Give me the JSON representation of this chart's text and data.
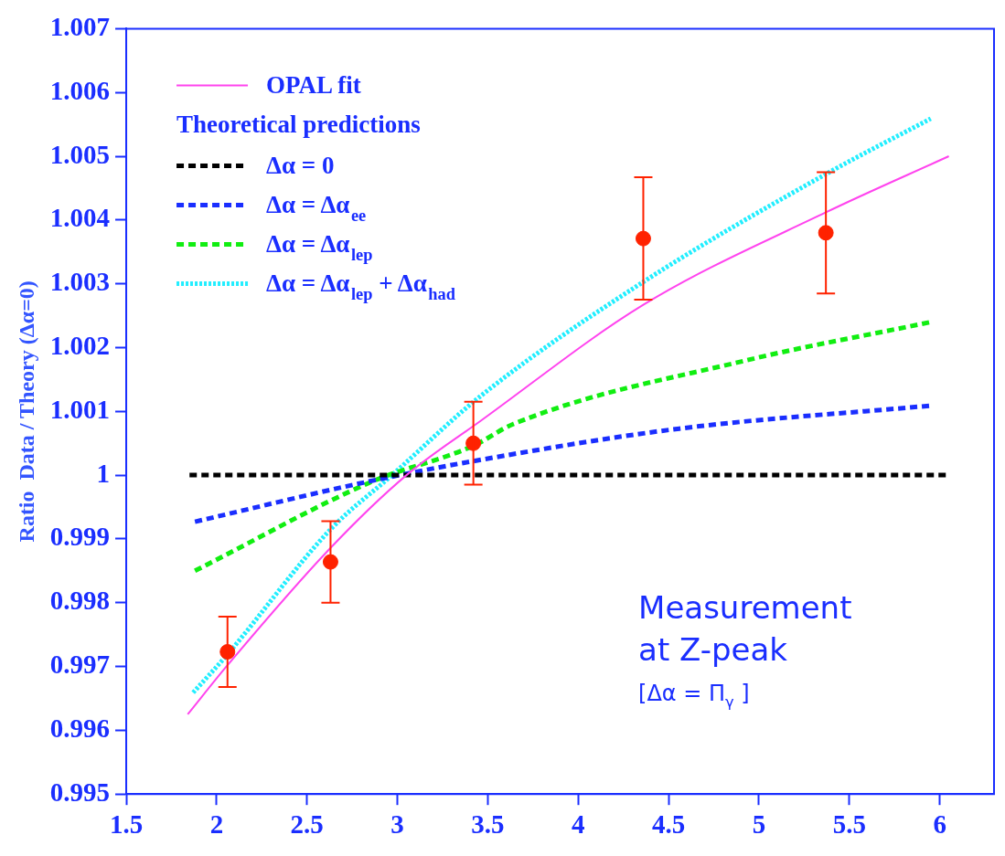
{
  "chart_data": {
    "type": "line",
    "ylabel": "Ratio  Data / Theory (Δα=0)",
    "legend_title": "Theoretical predictions",
    "legend": "top left",
    "grid": false,
    "xlim": [
      1.5,
      6.3
    ],
    "xticks": [
      1.5,
      2,
      2.5,
      3,
      3.5,
      4,
      4.5,
      5,
      5.5,
      6
    ],
    "ylim": [
      0.995,
      1.007
    ],
    "yticks": [
      0.995,
      0.996,
      0.997,
      0.998,
      0.999,
      1,
      1.001,
      1.002,
      1.003,
      1.004,
      1.005,
      1.006,
      1.007
    ],
    "annotations": [
      "Measurement",
      "at Z-peak",
      "[Δα = Π$_{γ}$ ]"
    ],
    "series": [
      {
        "name": "OPAL fit",
        "color": "#ff44ee",
        "line_style": "solid",
        "x": [
          1.84,
          2.06,
          2.63,
          3.05,
          3.46,
          4.36,
          5.37,
          6.05
        ],
        "values": [
          0.99625,
          0.99702,
          0.99886,
          1.0,
          1.00085,
          1.00267,
          1.00412,
          1.005
        ]
      },
      {
        "name": "Δα = 0",
        "color": "#000000",
        "line_style": "dashed",
        "x": [
          1.85,
          6.05
        ],
        "values": [
          1,
          1
        ]
      },
      {
        "name": "Δα = Δα$_{ee}$",
        "color": "#1a2eff",
        "line_style": "dashed",
        "x": [
          1.88,
          2.84,
          3.42,
          4.56,
          5.95
        ],
        "values": [
          0.99927,
          0.9999,
          1.00022,
          1.00073,
          1.00109
        ]
      },
      {
        "name": "Δα = Δα$_{lep}$",
        "color": "#11ee11",
        "line_style": "dashed",
        "x": [
          1.88,
          2.86,
          3.42,
          3.64,
          4.93,
          5.95
        ],
        "values": [
          0.9985,
          0.9999,
          1.00046,
          1.0008,
          1.0018,
          1.0024
        ]
      },
      {
        "name": "Δα = Δα$_{lep}$ + Δα$_{had}$",
        "color": "#22eeff",
        "line_style": "dotted",
        "x": [
          1.87,
          2.06,
          2.63,
          2.97,
          3.46,
          4.36,
          5.37,
          5.95
        ],
        "values": [
          0.99659,
          0.99719,
          0.99915,
          1.0,
          1.00124,
          1.00303,
          1.00472,
          1.00559
        ]
      },
      {
        "type": "scatter",
        "color": "#ff2200",
        "marker": "circle",
        "x": [
          2.06,
          2.63,
          3.42,
          4.36,
          5.37
        ],
        "values": [
          0.99723,
          0.99864,
          1.0005,
          1.00371,
          1.0038
        ],
        "errors": [
          0.00055,
          0.00064,
          0.00065,
          0.00096,
          0.00095
        ]
      }
    ]
  }
}
